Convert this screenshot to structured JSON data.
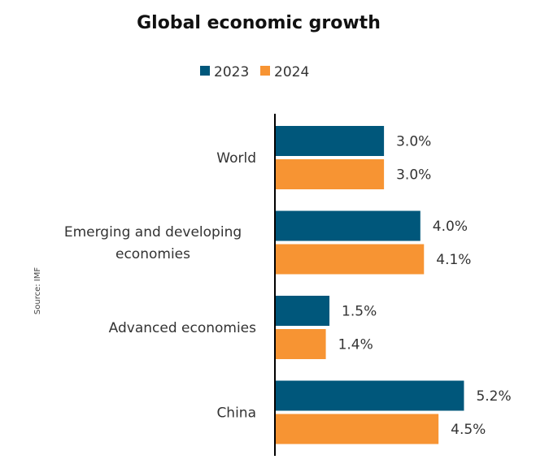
{
  "chart_data": {
    "type": "bar",
    "orientation": "horizontal",
    "title": "Global economic growth",
    "source_note": "Source: IMF",
    "xlabel": "",
    "ylabel": "",
    "xlim": [
      0,
      5.4
    ],
    "grid": false,
    "legend_position": "top-center",
    "categories": [
      [
        "World"
      ],
      [
        "Emerging and developing",
        "economies"
      ],
      [
        "Advanced economies"
      ],
      [
        "China"
      ]
    ],
    "series": [
      {
        "name": "2023",
        "color": "#00577B",
        "values": [
          3.0,
          4.0,
          1.5,
          5.2
        ],
        "labels": [
          "3.0%",
          "4.0%",
          "1.5%",
          "5.2%"
        ]
      },
      {
        "name": "2024",
        "color": "#F79433",
        "values": [
          3.0,
          4.1,
          1.4,
          4.5
        ],
        "labels": [
          "3.0%",
          "4.1%",
          "1.4%",
          "4.5%"
        ]
      }
    ],
    "value_suffix": "%"
  }
}
